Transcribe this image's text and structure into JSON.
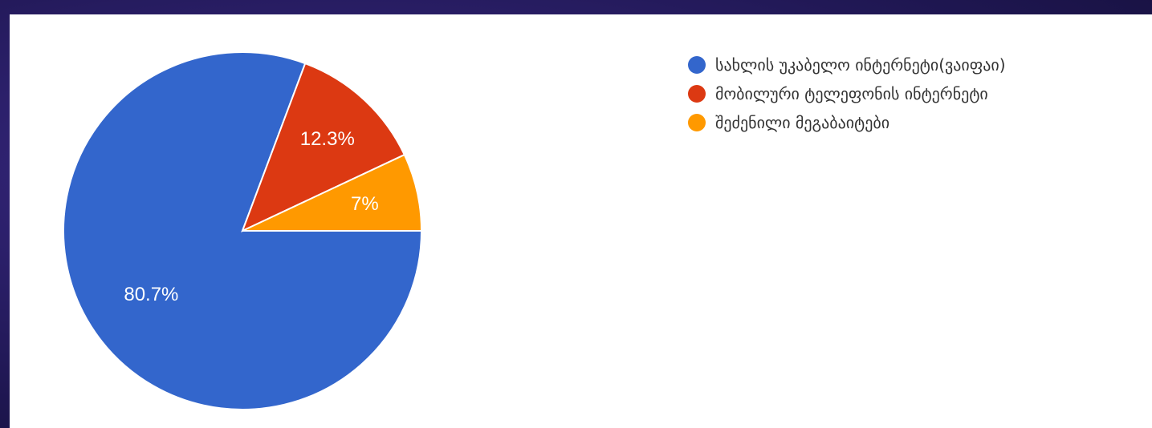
{
  "chart_data": {
    "type": "pie",
    "slices": [
      {
        "label": "სახლის უკაბელო ინტერნეტი(ვაიფაი)",
        "value": 80.7,
        "display": "80.7%",
        "color": "#3366cc"
      },
      {
        "label": "მობილური ტელეფონის ინტერნეტი",
        "value": 12.3,
        "display": "12.3%",
        "color": "#dc3912"
      },
      {
        "label": "შეძენილი მეგაბაიტები",
        "value": 7,
        "display": "7%",
        "color": "#ff9900"
      }
    ],
    "legend_position": "top-right"
  }
}
